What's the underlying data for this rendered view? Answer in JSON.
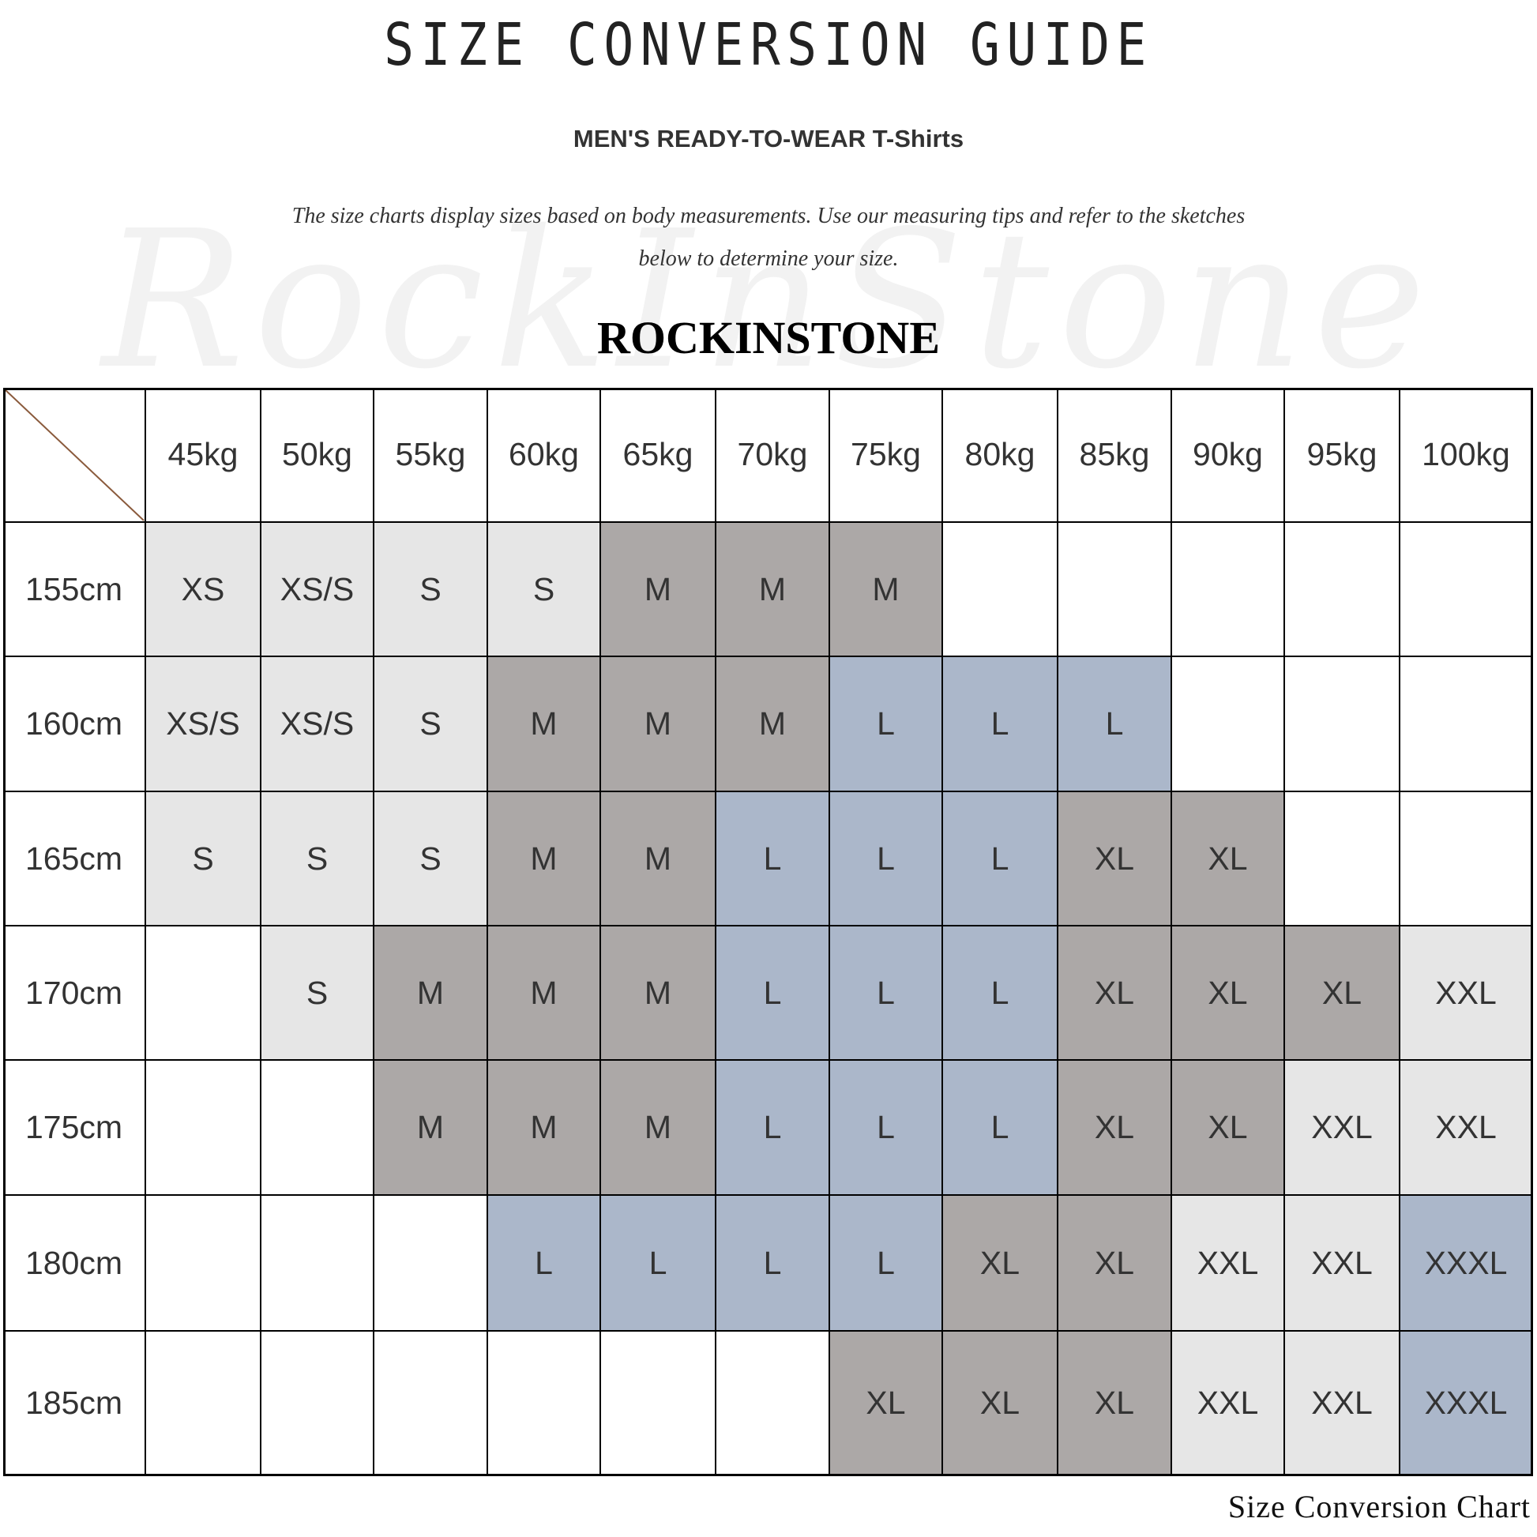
{
  "title": "SIZE CONVERSION GUIDE",
  "subtitle": "MEN'S READY-TO-WEAR T-Shirts",
  "description": {
    "line1": "The size charts display sizes based on body measurements. Use our measuring tips and refer to the sketches",
    "line2": "below to determine your size."
  },
  "watermark": "RockInStone",
  "brand": "ROCKINSTONE",
  "footer": "Size Conversion Chart",
  "colors": {
    "l": "#e6e6e6",
    "d": "#aca8a7",
    "b": "#abb7ca",
    "": "#ffffff"
  },
  "table": {
    "weights": [
      "45kg",
      "50kg",
      "55kg",
      "60kg",
      "65kg",
      "70kg",
      "75kg",
      "80kg",
      "85kg",
      "90kg",
      "95kg",
      "100kg"
    ],
    "rows": [
      {
        "height": "155cm",
        "cells": [
          [
            "XS",
            "l"
          ],
          [
            "XS/S",
            "l"
          ],
          [
            "S",
            "l"
          ],
          [
            "S",
            "l"
          ],
          [
            "M",
            "d"
          ],
          [
            "M",
            "d"
          ],
          [
            "M",
            "d"
          ],
          [
            "",
            ""
          ],
          [
            "",
            ""
          ],
          [
            "",
            ""
          ],
          [
            "",
            ""
          ],
          [
            "",
            ""
          ]
        ]
      },
      {
        "height": "160cm",
        "cells": [
          [
            "XS/S",
            "l"
          ],
          [
            "XS/S",
            "l"
          ],
          [
            "S",
            "l"
          ],
          [
            "M",
            "d"
          ],
          [
            "M",
            "d"
          ],
          [
            "M",
            "d"
          ],
          [
            "L",
            "b"
          ],
          [
            "L",
            "b"
          ],
          [
            "L",
            "b"
          ],
          [
            "",
            ""
          ],
          [
            "",
            ""
          ],
          [
            "",
            ""
          ]
        ]
      },
      {
        "height": "165cm",
        "cells": [
          [
            "S",
            "l"
          ],
          [
            "S",
            "l"
          ],
          [
            "S",
            "l"
          ],
          [
            "M",
            "d"
          ],
          [
            "M",
            "d"
          ],
          [
            "L",
            "b"
          ],
          [
            "L",
            "b"
          ],
          [
            "L",
            "b"
          ],
          [
            "XL",
            "d"
          ],
          [
            "XL",
            "d"
          ],
          [
            "",
            ""
          ],
          [
            "",
            ""
          ]
        ]
      },
      {
        "height": "170cm",
        "cells": [
          [
            "",
            ""
          ],
          [
            "S",
            "l"
          ],
          [
            "M",
            "d"
          ],
          [
            "M",
            "d"
          ],
          [
            "M",
            "d"
          ],
          [
            "L",
            "b"
          ],
          [
            "L",
            "b"
          ],
          [
            "L",
            "b"
          ],
          [
            "XL",
            "d"
          ],
          [
            "XL",
            "d"
          ],
          [
            "XL",
            "d"
          ],
          [
            "XXL",
            "l"
          ]
        ]
      },
      {
        "height": "175cm",
        "cells": [
          [
            "",
            ""
          ],
          [
            "",
            ""
          ],
          [
            "M",
            "d"
          ],
          [
            "M",
            "d"
          ],
          [
            "M",
            "d"
          ],
          [
            "L",
            "b"
          ],
          [
            "L",
            "b"
          ],
          [
            "L",
            "b"
          ],
          [
            "XL",
            "d"
          ],
          [
            "XL",
            "d"
          ],
          [
            "XXL",
            "l"
          ],
          [
            "XXL",
            "l"
          ]
        ]
      },
      {
        "height": "180cm",
        "cells": [
          [
            "",
            ""
          ],
          [
            "",
            ""
          ],
          [
            "",
            ""
          ],
          [
            "L",
            "b"
          ],
          [
            "L",
            "b"
          ],
          [
            "L",
            "b"
          ],
          [
            "L",
            "b"
          ],
          [
            "XL",
            "d"
          ],
          [
            "XL",
            "d"
          ],
          [
            "XXL",
            "l"
          ],
          [
            "XXL",
            "l"
          ],
          [
            "XXXL",
            "b"
          ]
        ]
      },
      {
        "height": "185cm",
        "cells": [
          [
            "",
            ""
          ],
          [
            "",
            ""
          ],
          [
            "",
            ""
          ],
          [
            "",
            ""
          ],
          [
            "",
            ""
          ],
          [
            "",
            ""
          ],
          [
            "XL",
            "d"
          ],
          [
            "XL",
            "d"
          ],
          [
            "XL",
            "d"
          ],
          [
            "XXL",
            "l"
          ],
          [
            "XXL",
            "l"
          ],
          [
            "XXXL",
            "b"
          ]
        ]
      }
    ]
  }
}
